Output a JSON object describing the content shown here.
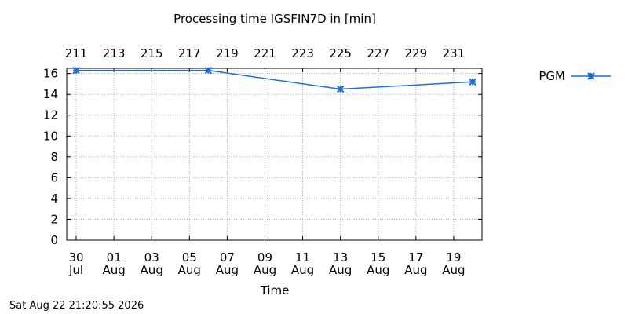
{
  "chart_data": {
    "type": "line",
    "title": "Processing time IGSFIN7D in [min]",
    "xlabel": "Time",
    "ylabel": "",
    "ylim": [
      0,
      16.5
    ],
    "yticks": [
      0,
      2,
      4,
      6,
      8,
      10,
      12,
      14,
      16
    ],
    "xlim": [
      "2026-07-29T12:00",
      "2026-08-20T12:00"
    ],
    "xticks": [
      {
        "date": "2026-07-30",
        "top": "211",
        "day": "30",
        "month": "Jul"
      },
      {
        "date": "2026-08-01",
        "top": "213",
        "day": "01",
        "month": "Aug"
      },
      {
        "date": "2026-08-03",
        "top": "215",
        "day": "03",
        "month": "Aug"
      },
      {
        "date": "2026-08-05",
        "top": "217",
        "day": "05",
        "month": "Aug"
      },
      {
        "date": "2026-08-07",
        "top": "219",
        "day": "07",
        "month": "Aug"
      },
      {
        "date": "2026-08-09",
        "top": "221",
        "day": "09",
        "month": "Aug"
      },
      {
        "date": "2026-08-11",
        "top": "223",
        "day": "11",
        "month": "Aug"
      },
      {
        "date": "2026-08-13",
        "top": "225",
        "day": "13",
        "month": "Aug"
      },
      {
        "date": "2026-08-15",
        "top": "227",
        "day": "15",
        "month": "Aug"
      },
      {
        "date": "2026-08-17",
        "top": "229",
        "day": "17",
        "month": "Aug"
      },
      {
        "date": "2026-08-19",
        "top": "231",
        "day": "19",
        "month": "Aug"
      }
    ],
    "grid": true,
    "legend": "top-right",
    "series": [
      {
        "name": "PGM",
        "color": "#1a6fdc",
        "marker": "star",
        "points": [
          {
            "x": "2026-07-30",
            "y": 16.3
          },
          {
            "x": "2026-08-06",
            "y": 16.3
          },
          {
            "x": "2026-08-13",
            "y": 14.5
          },
          {
            "x": "2026-08-20",
            "y": 15.2
          }
        ]
      }
    ]
  },
  "footer_timestamp": "Sat Aug 22 21:20:55 2026"
}
